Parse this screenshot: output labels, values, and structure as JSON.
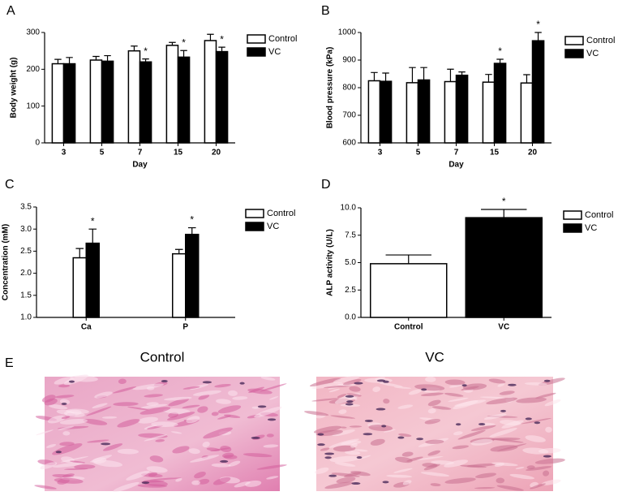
{
  "chart_data": [
    {
      "type": "bar",
      "panel": "A",
      "ylabel": "Body weight (g)",
      "xlabel": "Day",
      "categories": [
        "3",
        "5",
        "7",
        "15",
        "20"
      ],
      "ylim": [
        0,
        300
      ],
      "yticks": [
        0,
        100,
        200,
        300
      ],
      "legend": "right",
      "series": [
        {
          "name": "Control",
          "color": "#ffffff",
          "values": [
            215,
            225,
            250,
            265,
            278
          ],
          "errors": [
            12,
            10,
            13,
            8,
            17
          ]
        },
        {
          "name": "VC",
          "color": "#000000",
          "values": [
            215,
            222,
            220,
            233,
            248
          ],
          "errors": [
            17,
            15,
            8,
            18,
            12
          ],
          "annotations": [
            null,
            null,
            "*",
            "*",
            "*"
          ]
        }
      ]
    },
    {
      "type": "bar",
      "panel": "B",
      "ylabel": "Blood pressure (kPa)",
      "xlabel": "Day",
      "categories": [
        "3",
        "5",
        "7",
        "15",
        "20"
      ],
      "ylim": [
        600,
        1000
      ],
      "yticks": [
        600,
        700,
        800,
        900,
        1000
      ],
      "legend": "right",
      "series": [
        {
          "name": "Control",
          "color": "#ffffff",
          "values": [
            825,
            818,
            822,
            820,
            817
          ],
          "errors": [
            30,
            55,
            45,
            28,
            30
          ]
        },
        {
          "name": "VC",
          "color": "#000000",
          "values": [
            823,
            828,
            845,
            888,
            970
          ],
          "errors": [
            30,
            45,
            12,
            15,
            30
          ],
          "annotations": [
            null,
            null,
            null,
            "*",
            "*"
          ]
        }
      ]
    },
    {
      "type": "bar",
      "panel": "C",
      "ylabel": "Concentration (mM)",
      "categories": [
        "Ca",
        "P"
      ],
      "ylim": [
        1,
        3.5
      ],
      "yticks": [
        {
          "value": 1,
          "label": "1.0"
        },
        1.5,
        {
          "value": 2,
          "label": "2.0"
        },
        2.5,
        {
          "value": 3,
          "label": "3.0"
        },
        3.5
      ],
      "legend": "right",
      "series": [
        {
          "name": "Control",
          "color": "#ffffff",
          "values": [
            2.35,
            2.44
          ],
          "errors": [
            0.21,
            0.1
          ]
        },
        {
          "name": "VC",
          "color": "#000000",
          "values": [
            2.68,
            2.88
          ],
          "errors": [
            0.32,
            0.15
          ],
          "annotations": [
            "*",
            "*"
          ]
        }
      ]
    },
    {
      "type": "bar",
      "panel": "D",
      "ylabel": "ALP activity (U/L)",
      "categories": [
        "Control",
        "VC"
      ],
      "colors": [
        "#ffffff",
        "#000000"
      ],
      "values": [
        4.9,
        9.1
      ],
      "errors": [
        0.8,
        0.75
      ],
      "annotations": [
        null,
        "*"
      ],
      "ylim": [
        0,
        10
      ],
      "yticks": [
        {
          "value": 0,
          "label": "0.0"
        },
        {
          "value": 2.5,
          "label": "2.5"
        },
        {
          "value": 5,
          "label": "5.0"
        },
        {
          "value": 7.5,
          "label": "7.5"
        },
        {
          "value": 10,
          "label": "10.0"
        }
      ],
      "legend": "right"
    }
  ],
  "panel_e": {
    "label": "E",
    "images": [
      {
        "title": "Control"
      },
      {
        "title": "VC"
      }
    ]
  }
}
